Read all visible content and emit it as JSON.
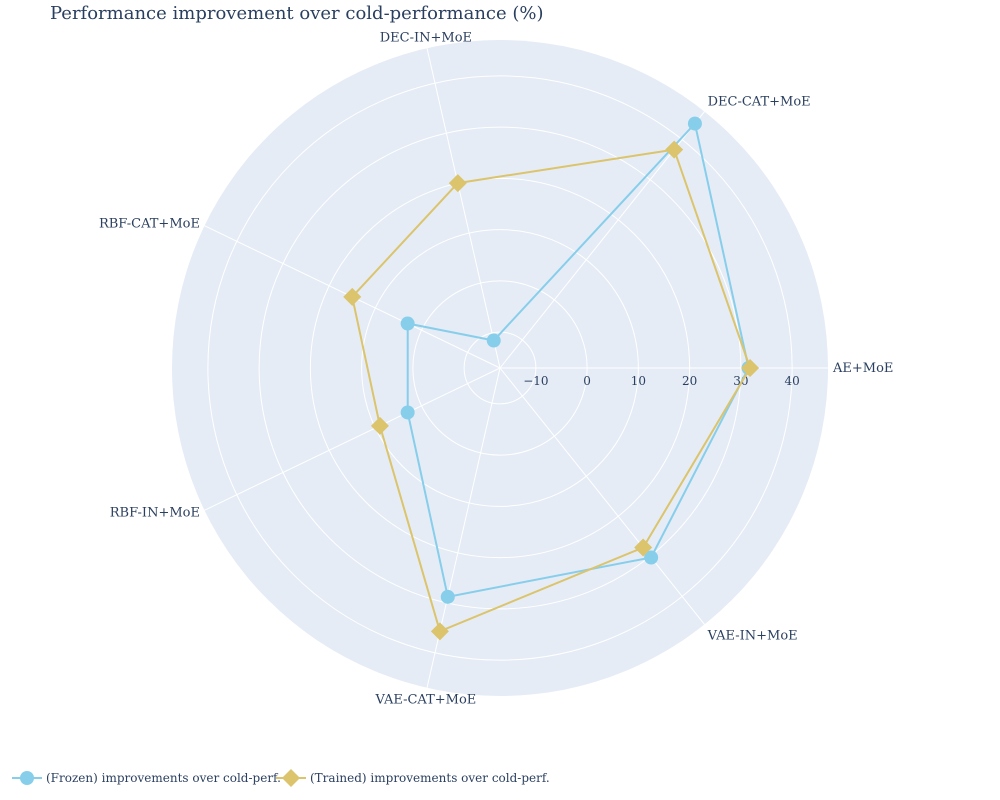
{
  "chart_data": {
    "type": "radar",
    "title": "Performance improvement over cold-performance (%)",
    "categories": [
      "AE+MoE",
      "DEC-CAT+MoE",
      "DEC-IN+MoE",
      "RBF-CAT+MoE",
      "RBF-IN+MoE",
      "VAE-CAT+MoE",
      "VAE-IN+MoE"
    ],
    "radial_range": [
      -17,
      47
    ],
    "radial_ticks": [
      -10,
      0,
      10,
      20,
      30,
      40
    ],
    "radial_tick_labels": [
      "−10",
      "0",
      "10",
      "20",
      "30",
      "40"
    ],
    "series": [
      {
        "name": "(Frozen) improvements over cold-perf.",
        "values": [
          31.5,
          44.0,
          -11.5,
          3.0,
          3.0,
          28.8,
          30.3
        ],
        "color": "#87ceeb",
        "marker": "circle"
      },
      {
        "name": "(Trained) improvements over cold-perf.",
        "values": [
          31.8,
          37.5,
          20.0,
          15.0,
          9.0,
          35.7,
          27.8
        ],
        "color": "#dbc46b",
        "marker": "diamond"
      }
    ],
    "background_color": "#e5ecf6",
    "grid_color": "#ffffff",
    "legend_position": "bottom-left"
  }
}
